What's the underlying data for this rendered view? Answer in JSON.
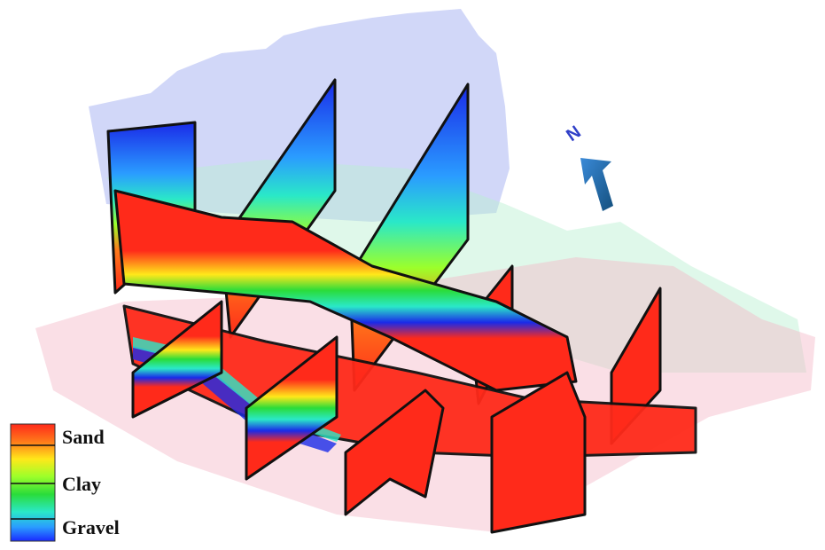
{
  "north_label": "N",
  "legend": {
    "labels": [
      "Sand",
      "Clay",
      "Gravel"
    ]
  }
}
